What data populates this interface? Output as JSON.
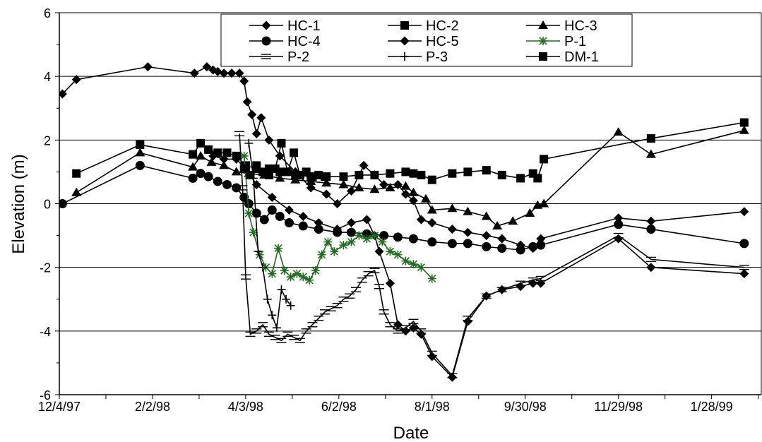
{
  "chart_data": {
    "type": "line",
    "title": "",
    "xlabel": "Date",
    "ylabel": "Elevation (m)",
    "ylim": [
      -6,
      6
    ],
    "xlim": [
      "1997-12-04",
      "1999-03-01"
    ],
    "grid": "horizontal major gridlines",
    "legend_placement": "top-center",
    "x_ticks": [
      "12/4/97",
      "2/2/98",
      "4/3/98",
      "6/2/98",
      "8/1/98",
      "9/30/98",
      "11/29/98",
      "1/28/99"
    ],
    "y_ticks": [
      -6,
      -4,
      -2,
      0,
      2,
      4,
      6
    ],
    "series": [
      {
        "name": "HC-1",
        "marker": "diamond",
        "color": "#000000",
        "x": [
          "1997-12-06",
          "1997-12-15",
          "1998-01-30",
          "1998-03-01",
          "1998-03-09",
          "1998-03-13",
          "1998-03-16",
          "1998-03-20",
          "1998-03-25",
          "1998-03-30",
          "1998-04-02",
          "1998-04-04",
          "1998-04-07",
          "1998-04-10",
          "1998-04-13",
          "1998-04-18",
          "1998-04-25",
          "1998-05-05",
          "1998-05-15",
          "1998-05-25",
          "1998-06-01",
          "1998-06-10",
          "1998-06-18",
          "1998-06-25",
          "1998-07-01",
          "1998-07-10",
          "1998-07-15",
          "1998-07-20",
          "1998-07-25",
          "1998-08-01",
          "1998-08-14",
          "1998-08-24",
          "1998-09-05",
          "1998-09-15",
          "1998-09-27",
          "1998-10-05",
          "1998-10-10",
          "1998-11-29",
          "1998-12-20",
          "1999-02-18"
        ],
        "y": [
          3.45,
          3.9,
          4.3,
          4.1,
          4.3,
          4.2,
          4.15,
          4.1,
          4.1,
          4.1,
          3.85,
          3.2,
          2.8,
          2.2,
          2.7,
          2.0,
          1.5,
          1.0,
          0.5,
          0.3,
          0.0,
          0.4,
          1.2,
          0.9,
          0.6,
          0.6,
          0.3,
          0.1,
          -0.5,
          -0.6,
          -0.8,
          -0.9,
          -1.0,
          -1.1,
          -1.3,
          -1.4,
          -1.1,
          -0.45,
          -0.55,
          -0.25
        ]
      },
      {
        "name": "HC-2",
        "marker": "square",
        "color": "#000000",
        "x": [
          "1997-12-15",
          "1998-01-25",
          "1998-02-28",
          "1998-03-05",
          "1998-03-10",
          "1998-03-16",
          "1998-03-22",
          "1998-03-28",
          "1998-04-03",
          "1998-04-10",
          "1998-04-18",
          "1998-04-25",
          "1998-05-05",
          "1998-05-15",
          "1998-05-25",
          "1998-06-05",
          "1998-06-15",
          "1998-06-25",
          "1998-07-05",
          "1998-07-15",
          "1998-07-20",
          "1998-07-25",
          "1998-08-01",
          "1998-08-14",
          "1998-08-24",
          "1998-09-05",
          "1998-09-15",
          "1998-09-27",
          "1998-10-05",
          "1998-10-08",
          "1998-10-12",
          "1998-12-20",
          "1999-02-18"
        ],
        "y": [
          0.95,
          1.85,
          1.55,
          1.9,
          1.7,
          1.6,
          1.6,
          1.5,
          1.2,
          1.1,
          1.1,
          1.0,
          0.9,
          0.85,
          0.85,
          0.85,
          0.9,
          0.9,
          0.95,
          1.0,
          0.95,
          0.9,
          0.75,
          0.95,
          1.0,
          1.05,
          0.9,
          0.8,
          0.95,
          0.8,
          1.4,
          2.05,
          2.55
        ]
      },
      {
        "name": "HC-3",
        "marker": "triangle",
        "color": "#000000",
        "x": [
          "1997-12-15",
          "1998-01-25",
          "1998-02-28",
          "1998-03-05",
          "1998-03-12",
          "1998-03-20",
          "1998-03-28",
          "1998-04-05",
          "1998-04-15",
          "1998-04-25",
          "1998-05-05",
          "1998-05-15",
          "1998-05-25",
          "1998-06-05",
          "1998-06-15",
          "1998-06-25",
          "1998-07-05",
          "1998-07-15",
          "1998-07-20",
          "1998-07-28",
          "1998-08-01",
          "1998-08-14",
          "1998-08-24",
          "1998-09-05",
          "1998-09-12",
          "1998-09-22",
          "1998-10-03",
          "1998-10-08",
          "1998-10-12",
          "1998-11-29",
          "1998-12-20",
          "1999-02-18"
        ],
        "y": [
          0.35,
          1.6,
          1.15,
          1.5,
          1.3,
          1.2,
          1.0,
          0.95,
          0.9,
          0.8,
          0.75,
          0.7,
          0.65,
          0.6,
          0.5,
          0.45,
          0.5,
          0.55,
          0.35,
          0.15,
          -0.2,
          -0.15,
          -0.25,
          -0.4,
          -0.7,
          -0.55,
          -0.3,
          -0.05,
          0.0,
          2.25,
          1.55,
          2.3
        ]
      },
      {
        "name": "HC-4",
        "marker": "circle",
        "color": "#000000",
        "x": [
          "1997-12-06",
          "1998-01-25",
          "1998-02-28",
          "1998-03-05",
          "1998-03-10",
          "1998-03-16",
          "1998-03-22",
          "1998-03-28",
          "1998-04-02",
          "1998-04-05",
          "1998-04-10",
          "1998-04-15",
          "1998-04-20",
          "1998-04-25",
          "1998-05-01",
          "1998-05-10",
          "1998-05-20",
          "1998-06-01",
          "1998-06-10",
          "1998-06-20",
          "1998-07-01",
          "1998-07-10",
          "1998-07-20",
          "1998-08-01",
          "1998-08-14",
          "1998-08-24",
          "1998-09-05",
          "1998-09-15",
          "1998-09-27",
          "1998-10-05",
          "1998-10-10",
          "1998-11-29",
          "1998-12-20",
          "1999-02-18"
        ],
        "y": [
          0.0,
          1.2,
          0.8,
          0.95,
          0.85,
          0.7,
          0.6,
          0.5,
          0.2,
          0.0,
          -0.3,
          -0.5,
          -0.2,
          -0.4,
          -0.6,
          -0.7,
          -0.8,
          -0.9,
          -0.9,
          -0.95,
          -1.0,
          -1.05,
          -1.1,
          -1.2,
          -1.25,
          -1.25,
          -1.35,
          -1.4,
          -1.45,
          -1.35,
          -1.3,
          -0.65,
          -0.8,
          -1.25
        ]
      },
      {
        "name": "HC-5",
        "marker": "diamond",
        "color": "#000000",
        "x": [
          "1998-03-13",
          "1998-03-20",
          "1998-03-28",
          "1998-04-03",
          "1998-04-10",
          "1998-04-20",
          "1998-05-01",
          "1998-05-10",
          "1998-05-20",
          "1998-06-01",
          "1998-06-10",
          "1998-06-20",
          "1998-06-25",
          "1998-06-28",
          "1998-07-05",
          "1998-07-10",
          "1998-07-15",
          "1998-07-20",
          "1998-07-25",
          "1998-08-01",
          "1998-08-14",
          "1998-08-24",
          "1998-09-05",
          "1998-09-15",
          "1998-09-27",
          "1998-10-05",
          "1998-10-10",
          "1998-11-29",
          "1998-12-20",
          "1999-02-18"
        ],
        "y": [
          1.5,
          1.4,
          1.4,
          1.1,
          0.6,
          0.2,
          -0.2,
          -0.4,
          -0.6,
          -0.8,
          -0.6,
          -0.5,
          -1.0,
          -1.5,
          -2.5,
          -3.8,
          -4.0,
          -3.9,
          -4.1,
          -4.8,
          -5.45,
          -3.7,
          -2.9,
          -2.7,
          -2.6,
          -2.5,
          -2.5,
          -1.1,
          -2.0,
          -2.2
        ]
      },
      {
        "name": "P-1",
        "marker": "star",
        "color": "#1f6b1f",
        "x": [
          "1998-04-02",
          "1998-04-05",
          "1998-04-08",
          "1998-04-12",
          "1998-04-16",
          "1998-04-20",
          "1998-04-24",
          "1998-04-28",
          "1998-05-02",
          "1998-05-06",
          "1998-05-10",
          "1998-05-14",
          "1998-05-18",
          "1998-05-22",
          "1998-05-26",
          "1998-05-30",
          "1998-06-05",
          "1998-06-10",
          "1998-06-15",
          "1998-06-20",
          "1998-06-25",
          "1998-06-30",
          "1998-07-05",
          "1998-07-10",
          "1998-07-15",
          "1998-07-20",
          "1998-07-25",
          "1998-08-01"
        ],
        "y": [
          1.5,
          -0.3,
          -0.9,
          -1.6,
          -2.0,
          -2.2,
          -1.4,
          -2.1,
          -2.3,
          -2.2,
          -2.3,
          -2.4,
          -2.1,
          -1.6,
          -1.2,
          -1.5,
          -1.3,
          -1.2,
          -1.0,
          -1.1,
          -1.0,
          -1.2,
          -1.5,
          -1.6,
          -1.8,
          -1.9,
          -2.0,
          -2.35
        ]
      },
      {
        "name": "P-2",
        "marker": "dash",
        "color": "#000000",
        "x": [
          "1998-03-30",
          "1998-04-01",
          "1998-04-03",
          "1998-04-06",
          "1998-04-10",
          "1998-04-14",
          "1998-04-18",
          "1998-04-22",
          "1998-04-26",
          "1998-04-30",
          "1998-05-04",
          "1998-05-08",
          "1998-05-12",
          "1998-05-16",
          "1998-05-20",
          "1998-05-24",
          "1998-05-28",
          "1998-06-01",
          "1998-06-05",
          "1998-06-09",
          "1998-06-13",
          "1998-06-17",
          "1998-06-21",
          "1998-06-25",
          "1998-06-28",
          "1998-07-01",
          "1998-07-05",
          "1998-07-10",
          "1998-07-15",
          "1998-07-20",
          "1998-07-25",
          "1998-08-01",
          "1998-08-14",
          "1998-08-24",
          "1998-09-05",
          "1998-09-15",
          "1998-09-27",
          "1998-10-05",
          "1998-10-10",
          "1998-11-29",
          "1998-12-20",
          "1999-02-18"
        ],
        "y": [
          2.2,
          0.5,
          -2.3,
          -4.1,
          -4.0,
          -3.8,
          -4.1,
          -4.2,
          -4.3,
          -4.1,
          -4.2,
          -4.3,
          -4.0,
          -3.8,
          -3.6,
          -3.4,
          -3.3,
          -3.2,
          -3.0,
          -2.9,
          -2.7,
          -2.4,
          -2.2,
          -2.1,
          -2.6,
          -3.4,
          -3.8,
          -4.0,
          -3.9,
          -3.7,
          -4.0,
          -4.7,
          -5.4,
          -3.6,
          -2.9,
          -2.7,
          -2.5,
          -2.4,
          -2.35,
          -1.0,
          -1.75,
          -2.0
        ]
      },
      {
        "name": "P-3",
        "marker": "plus",
        "color": "#000000",
        "x": [
          "1998-04-05",
          "1998-04-08",
          "1998-04-11",
          "1998-04-14",
          "1998-04-17",
          "1998-04-20",
          "1998-04-23",
          "1998-04-26",
          "1998-04-29",
          "1998-05-02"
        ],
        "y": [
          1.9,
          0.8,
          -1.5,
          -2.0,
          -3.0,
          -3.5,
          -3.9,
          -2.7,
          -3.0,
          -3.2
        ]
      },
      {
        "name": "DM-1",
        "marker": "square",
        "color": "#000000",
        "x": [
          "1998-04-02",
          "1998-04-06",
          "1998-04-10",
          "1998-04-14",
          "1998-04-18",
          "1998-04-22",
          "1998-04-26",
          "1998-04-30",
          "1998-05-04",
          "1998-05-08",
          "1998-05-12",
          "1998-05-16",
          "1998-05-20",
          "1998-05-24"
        ],
        "y": [
          1.1,
          0.9,
          1.2,
          1.0,
          0.9,
          1.1,
          1.9,
          1.0,
          1.6,
          0.9,
          1.0,
          0.85,
          0.9,
          0.85
        ]
      }
    ]
  }
}
